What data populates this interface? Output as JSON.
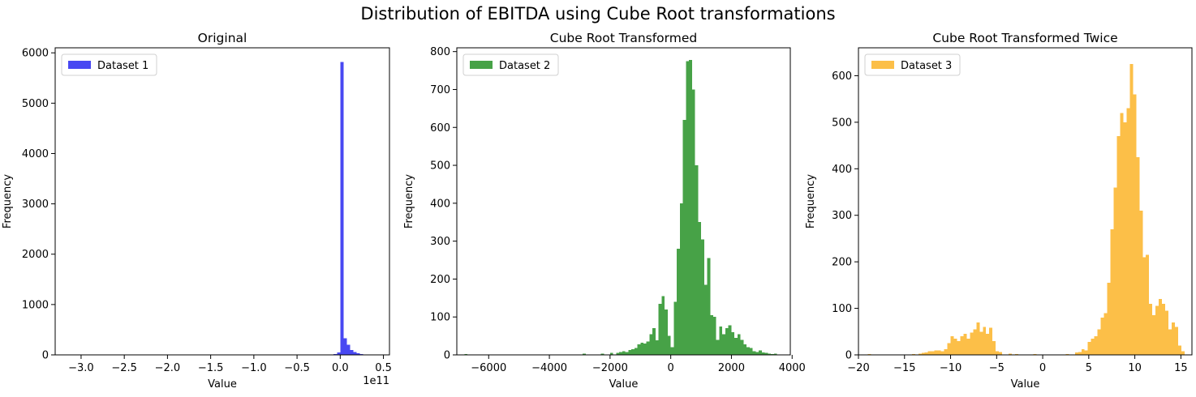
{
  "figure": {
    "suptitle": "Distribution of EBITDA using Cube Root transformations"
  },
  "chart_data": [
    {
      "type": "histogram",
      "title": "Original",
      "xlabel": "Value",
      "ylabel": "Frequency",
      "x_offset_text": "1e11",
      "legend": {
        "label": "Dataset 1",
        "position": "upper left"
      },
      "color": "#4848f2",
      "xlim": [
        -3.3,
        0.57
      ],
      "ylim": [
        0,
        6100
      ],
      "xticks": [
        -3.0,
        -2.5,
        -2.0,
        -1.5,
        -1.0,
        -0.5,
        0.0,
        0.5
      ],
      "xtick_labels": [
        "−3.0",
        "−2.5",
        "−2.0",
        "−1.5",
        "−1.0",
        "−0.5",
        "0.0",
        "0.5"
      ],
      "yticks": [
        0,
        1000,
        2000,
        3000,
        4000,
        5000,
        6000
      ],
      "yticks_labels": [
        "0",
        "1000",
        "2000",
        "3000",
        "4000",
        "5000",
        "6000"
      ],
      "bin_width": 0.038,
      "bins": [
        {
          "x": -0.114,
          "count": 8
        },
        {
          "x": -0.076,
          "count": 20
        },
        {
          "x": -0.038,
          "count": 45
        },
        {
          "x": 0.0,
          "count": 5820
        },
        {
          "x": 0.038,
          "count": 330
        },
        {
          "x": 0.076,
          "count": 200
        },
        {
          "x": 0.114,
          "count": 95
        },
        {
          "x": 0.152,
          "count": 60
        },
        {
          "x": 0.19,
          "count": 35
        },
        {
          "x": 0.228,
          "count": 20
        },
        {
          "x": 0.266,
          "count": 12
        },
        {
          "x": 0.304,
          "count": 6
        },
        {
          "x": 0.342,
          "count": 3
        },
        {
          "x": 0.38,
          "count": 2
        }
      ]
    },
    {
      "type": "histogram",
      "title": "Cube Root Transformed",
      "xlabel": "Value",
      "ylabel": "Frequency",
      "legend": {
        "label": "Dataset 2",
        "position": "upper left"
      },
      "color": "#47a247",
      "xlim": [
        -7050,
        3940
      ],
      "ylim": [
        0,
        810
      ],
      "xticks": [
        -6000,
        -4000,
        -2000,
        0,
        2000,
        4000
      ],
      "xtick_labels": [
        "−6000",
        "−4000",
        "−2000",
        "0",
        "2000",
        "4000"
      ],
      "yticks": [
        0,
        100,
        200,
        300,
        400,
        500,
        600,
        700,
        800
      ],
      "yticks_labels": [
        "0",
        "100",
        "200",
        "300",
        "400",
        "500",
        "600",
        "700",
        "800"
      ],
      "bin_width": 100,
      "bins": [
        {
          "x": -6800,
          "count": 2
        },
        {
          "x": -2900,
          "count": 3
        },
        {
          "x": -2300,
          "count": 3
        },
        {
          "x": -2000,
          "count": 5
        },
        {
          "x": -1800,
          "count": 5
        },
        {
          "x": -1700,
          "count": 8
        },
        {
          "x": -1600,
          "count": 10
        },
        {
          "x": -1500,
          "count": 8
        },
        {
          "x": -1400,
          "count": 13
        },
        {
          "x": -1300,
          "count": 15
        },
        {
          "x": -1200,
          "count": 18
        },
        {
          "x": -1100,
          "count": 28
        },
        {
          "x": -1000,
          "count": 32
        },
        {
          "x": -900,
          "count": 30
        },
        {
          "x": -800,
          "count": 35
        },
        {
          "x": -700,
          "count": 55
        },
        {
          "x": -600,
          "count": 70
        },
        {
          "x": -500,
          "count": 38
        },
        {
          "x": -400,
          "count": 135
        },
        {
          "x": -300,
          "count": 155
        },
        {
          "x": -200,
          "count": 120
        },
        {
          "x": -100,
          "count": 50
        },
        {
          "x": 0,
          "count": 20
        },
        {
          "x": 100,
          "count": 140
        },
        {
          "x": 200,
          "count": 280
        },
        {
          "x": 300,
          "count": 400
        },
        {
          "x": 400,
          "count": 620
        },
        {
          "x": 500,
          "count": 775
        },
        {
          "x": 600,
          "count": 778
        },
        {
          "x": 700,
          "count": 700
        },
        {
          "x": 800,
          "count": 500
        },
        {
          "x": 900,
          "count": 350
        },
        {
          "x": 1000,
          "count": 305
        },
        {
          "x": 1100,
          "count": 185
        },
        {
          "x": 1200,
          "count": 255
        },
        {
          "x": 1300,
          "count": 105
        },
        {
          "x": 1400,
          "count": 100
        },
        {
          "x": 1500,
          "count": 40
        },
        {
          "x": 1600,
          "count": 75
        },
        {
          "x": 1700,
          "count": 55
        },
        {
          "x": 1800,
          "count": 70
        },
        {
          "x": 1900,
          "count": 78
        },
        {
          "x": 2000,
          "count": 60
        },
        {
          "x": 2100,
          "count": 45
        },
        {
          "x": 2200,
          "count": 55
        },
        {
          "x": 2300,
          "count": 40
        },
        {
          "x": 2400,
          "count": 28
        },
        {
          "x": 2500,
          "count": 20
        },
        {
          "x": 2600,
          "count": 18
        },
        {
          "x": 2700,
          "count": 10
        },
        {
          "x": 2800,
          "count": 8
        },
        {
          "x": 2900,
          "count": 12
        },
        {
          "x": 3000,
          "count": 6
        },
        {
          "x": 3100,
          "count": 5
        },
        {
          "x": 3200,
          "count": 3
        },
        {
          "x": 3300,
          "count": 2
        },
        {
          "x": 3400,
          "count": 3
        }
      ]
    },
    {
      "type": "histogram",
      "title": "Cube Root Transformed Twice",
      "xlabel": "Value",
      "ylabel": "Frequency",
      "legend": {
        "label": "Dataset 3",
        "position": "upper left"
      },
      "color": "#fcbf48",
      "xlim": [
        -20.0,
        16.2
      ],
      "ylim": [
        0,
        660
      ],
      "xticks": [
        -20,
        -15,
        -10,
        -5,
        0,
        5,
        10,
        15
      ],
      "xtick_labels": [
        "−20",
        "−15",
        "−10",
        "−5",
        "0",
        "5",
        "10",
        "15"
      ],
      "yticks": [
        0,
        100,
        200,
        300,
        400,
        500,
        600
      ],
      "yticks_labels": [
        "0",
        "100",
        "200",
        "300",
        "400",
        "500",
        "600"
      ],
      "bin_width": 0.35,
      "bins": [
        {
          "x": -19.0,
          "count": 2
        },
        {
          "x": -14.2,
          "count": 2
        },
        {
          "x": -13.5,
          "count": 3
        },
        {
          "x": -13.15,
          "count": 4
        },
        {
          "x": -12.8,
          "count": 5
        },
        {
          "x": -12.45,
          "count": 8
        },
        {
          "x": -12.1,
          "count": 8
        },
        {
          "x": -11.75,
          "count": 10
        },
        {
          "x": -11.4,
          "count": 10
        },
        {
          "x": -11.05,
          "count": 8
        },
        {
          "x": -10.7,
          "count": 12
        },
        {
          "x": -10.35,
          "count": 25
        },
        {
          "x": -10.0,
          "count": 40
        },
        {
          "x": -9.65,
          "count": 35
        },
        {
          "x": -9.3,
          "count": 30
        },
        {
          "x": -8.95,
          "count": 40
        },
        {
          "x": -8.6,
          "count": 45
        },
        {
          "x": -8.25,
          "count": 35
        },
        {
          "x": -7.9,
          "count": 48
        },
        {
          "x": -7.55,
          "count": 55
        },
        {
          "x": -7.2,
          "count": 70
        },
        {
          "x": -6.85,
          "count": 50
        },
        {
          "x": -6.5,
          "count": 60
        },
        {
          "x": -6.15,
          "count": 45
        },
        {
          "x": -5.8,
          "count": 58
        },
        {
          "x": -5.45,
          "count": 30
        },
        {
          "x": -5.1,
          "count": 8
        },
        {
          "x": -4.75,
          "count": 6
        },
        {
          "x": -3.7,
          "count": 3
        },
        {
          "x": -3.0,
          "count": 2
        },
        {
          "x": -1.0,
          "count": 2
        },
        {
          "x": 2.5,
          "count": 2
        },
        {
          "x": 3.5,
          "count": 5
        },
        {
          "x": 3.85,
          "count": 6
        },
        {
          "x": 4.2,
          "count": 12
        },
        {
          "x": 4.55,
          "count": 10
        },
        {
          "x": 4.9,
          "count": 28
        },
        {
          "x": 5.25,
          "count": 35
        },
        {
          "x": 5.6,
          "count": 40
        },
        {
          "x": 5.95,
          "count": 55
        },
        {
          "x": 6.3,
          "count": 80
        },
        {
          "x": 6.65,
          "count": 90
        },
        {
          "x": 7.0,
          "count": 155
        },
        {
          "x": 7.35,
          "count": 270
        },
        {
          "x": 7.7,
          "count": 360
        },
        {
          "x": 8.05,
          "count": 470
        },
        {
          "x": 8.4,
          "count": 520
        },
        {
          "x": 8.75,
          "count": 500
        },
        {
          "x": 9.1,
          "count": 530
        },
        {
          "x": 9.45,
          "count": 625
        },
        {
          "x": 9.8,
          "count": 560
        },
        {
          "x": 10.15,
          "count": 425
        },
        {
          "x": 10.5,
          "count": 310
        },
        {
          "x": 10.85,
          "count": 210
        },
        {
          "x": 11.2,
          "count": 215
        },
        {
          "x": 11.55,
          "count": 110
        },
        {
          "x": 11.9,
          "count": 85
        },
        {
          "x": 12.25,
          "count": 105
        },
        {
          "x": 12.6,
          "count": 120
        },
        {
          "x": 12.95,
          "count": 110
        },
        {
          "x": 13.3,
          "count": 95
        },
        {
          "x": 13.65,
          "count": 55
        },
        {
          "x": 14.0,
          "count": 70
        },
        {
          "x": 14.35,
          "count": 60
        },
        {
          "x": 14.7,
          "count": 20
        },
        {
          "x": 15.05,
          "count": 8
        }
      ]
    }
  ]
}
